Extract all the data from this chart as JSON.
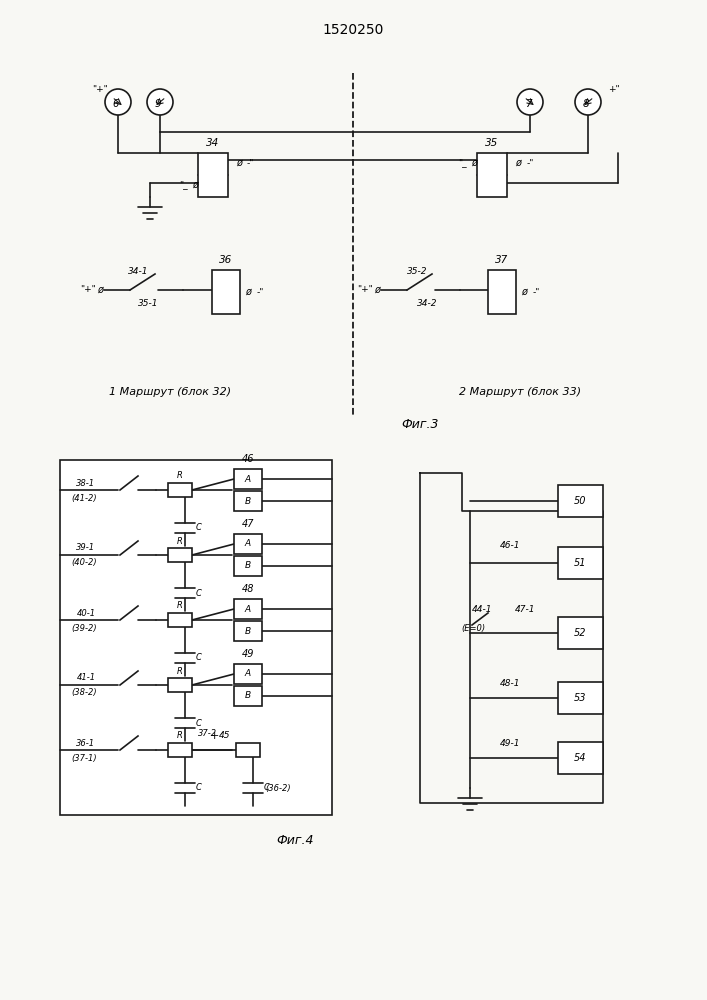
{
  "title": "1520250",
  "fig3_label": "Фиг.3",
  "fig4_label": "Фиг.4",
  "route1_label": "1 Маршрут (блок 32)",
  "route2_label": "2 Маршрут (блок 33)",
  "bg": "#f8f8f4",
  "lc": "#1a1a1a",
  "lw": 1.2,
  "row_labels_left": [
    [
      "38-1",
      "(41-2)"
    ],
    [
      "39-1",
      "(40-2)"
    ],
    [
      "40-1",
      "(39-2)"
    ],
    [
      "41-1",
      "(38-2)"
    ],
    [
      "36-1",
      "(37-1)"
    ]
  ],
  "ab_labels": [
    "46",
    "47",
    "48",
    "49",
    ""
  ],
  "right_out_labels": [
    "50",
    "51",
    "52",
    "53",
    "54"
  ],
  "right_inner_labels": [
    "46-1",
    "44-1",
    "47-1",
    "(E=0)",
    "48-1",
    "49-1"
  ]
}
